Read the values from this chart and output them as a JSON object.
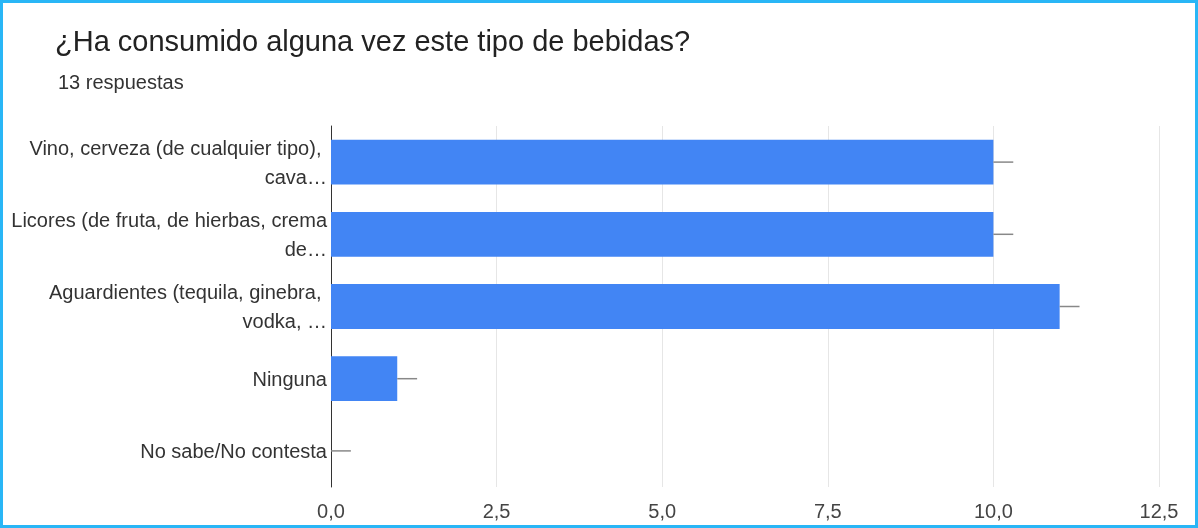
{
  "chart_data": {
    "type": "bar",
    "orientation": "horizontal",
    "title": "¿Ha consumido alguna vez este tipo de bebidas?",
    "subtitle": "13 respuestas",
    "categories": [
      "Vino, cerveza (de cualquier tipo), cava…",
      "Licores (de fruta, de hierbas, crema de…",
      "Aguardientes (tequila, ginebra, vodka, …",
      "Ninguna",
      "No sabe/No contesta"
    ],
    "values": [
      10,
      10,
      11,
      1,
      0
    ],
    "errors": [
      [
        10,
        10.3
      ],
      [
        10,
        10.3
      ],
      [
        11,
        11.3
      ],
      [
        1,
        1.3
      ],
      [
        0,
        0.3
      ]
    ],
    "color": "#4285f4",
    "xlim": [
      0,
      12.5
    ],
    "xticks": [
      {
        "value": 0,
        "label": "0,0"
      },
      {
        "value": 2.5,
        "label": "2,5"
      },
      {
        "value": 5,
        "label": "5,0"
      },
      {
        "value": 7.5,
        "label": "7,5"
      },
      {
        "value": 10,
        "label": "10,0"
      },
      {
        "value": 12.5,
        "label": "12,5"
      }
    ],
    "grid": "x"
  }
}
